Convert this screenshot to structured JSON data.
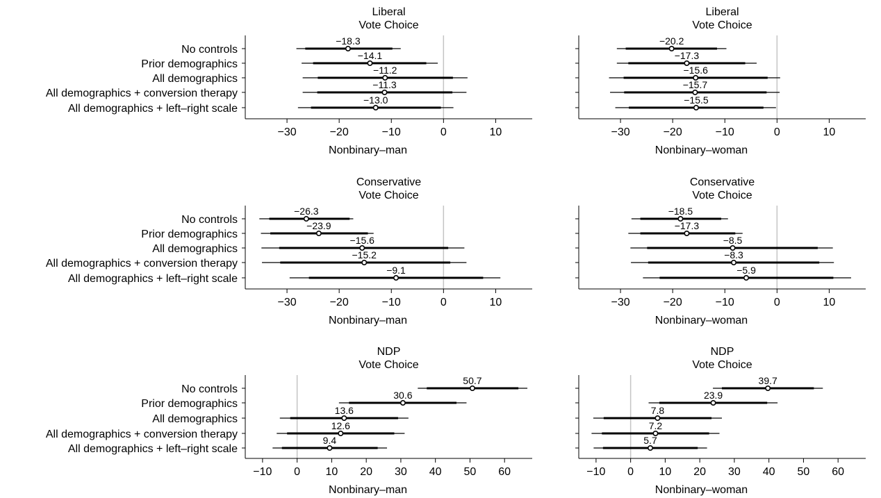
{
  "labels": {
    "rows": [
      "No controls",
      "Prior demographics",
      "All demographics",
      "All demographics + conversion therapy",
      "All demographics + left–right scale"
    ]
  },
  "chart_data": [
    {
      "type": "forest",
      "title": [
        "Liberal",
        "Vote Choice"
      ],
      "xlabel": "Nonbinary–man",
      "xlim": [
        -38,
        17
      ],
      "xticks": [
        -30,
        -20,
        -10,
        0,
        10
      ],
      "xtick_labels": [
        "−30",
        "−20",
        "−10",
        "0",
        "10"
      ],
      "categories": [
        "No controls",
        "Prior demographics",
        "All demographics",
        "All demographics + conversion therapy",
        "All demographics + left–right scale"
      ],
      "estimates": [
        -18.3,
        -14.1,
        -11.2,
        -11.3,
        -13.0
      ],
      "value_labels": [
        "−18.3",
        "−14.1",
        "−11.2",
        "−11.3",
        "−13.0"
      ],
      "ci90": [
        [
          -26.5,
          -9.8
        ],
        [
          -25.0,
          -3.3
        ],
        [
          -24.1,
          1.8
        ],
        [
          -24.2,
          1.7
        ],
        [
          -25.4,
          -0.5
        ]
      ],
      "ci95": [
        [
          -28.2,
          -8.2
        ],
        [
          -27.2,
          -1.1
        ],
        [
          -27.0,
          4.6
        ],
        [
          -27.0,
          4.4
        ],
        [
          -27.9,
          1.9
        ]
      ]
    },
    {
      "type": "forest",
      "title": [
        "Liberal",
        "Vote Choice"
      ],
      "xlabel": "Nonbinary–woman",
      "xlim": [
        -38,
        17
      ],
      "xticks": [
        -30,
        -20,
        -10,
        0,
        10
      ],
      "xtick_labels": [
        "−30",
        "−20",
        "−10",
        "0",
        "10"
      ],
      "categories": [
        "No controls",
        "Prior demographics",
        "All demographics",
        "All demographics + conversion therapy",
        "All demographics + left–right scale"
      ],
      "estimates": [
        -20.2,
        -17.3,
        -15.6,
        -15.7,
        -15.5
      ],
      "value_labels": [
        "−20.2",
        "−17.3",
        "−15.6",
        "−15.7",
        "−15.5"
      ],
      "ci90": [
        [
          -29.0,
          -11.5
        ],
        [
          -28.5,
          -6.1
        ],
        [
          -29.4,
          -1.8
        ],
        [
          -29.3,
          -2.0
        ],
        [
          -28.4,
          -2.6
        ]
      ],
      "ci95": [
        [
          -30.7,
          -9.7
        ],
        [
          -30.7,
          -3.9
        ],
        [
          -32.2,
          0.6
        ],
        [
          -32.0,
          0.5
        ],
        [
          -31.0,
          -0.2
        ]
      ]
    },
    {
      "type": "forest",
      "title": [
        "Conservative",
        "Vote Choice"
      ],
      "xlabel": "Nonbinary–man",
      "xlim": [
        -38,
        17
      ],
      "xticks": [
        -30,
        -20,
        -10,
        0,
        10
      ],
      "xtick_labels": [
        "−30",
        "−20",
        "−10",
        "0",
        "10"
      ],
      "categories": [
        "No controls",
        "Prior demographics",
        "All demographics",
        "All demographics + conversion therapy",
        "All demographics + left–right scale"
      ],
      "estimates": [
        -26.3,
        -23.9,
        -15.6,
        -15.2,
        -9.1
      ],
      "value_labels": [
        "−26.3",
        "−23.9",
        "−15.6",
        "−15.2",
        "−9.1"
      ],
      "ci90": [
        [
          -33.4,
          -18.0
        ],
        [
          -33.2,
          -14.5
        ],
        [
          -31.5,
          0.9
        ],
        [
          -31.3,
          1.3
        ],
        [
          -25.8,
          7.6
        ]
      ],
      "ci95": [
        [
          -35.3,
          -17.3
        ],
        [
          -35.0,
          -13.4
        ],
        [
          -34.9,
          4.0
        ],
        [
          -34.8,
          4.4
        ],
        [
          -29.5,
          10.9
        ]
      ]
    },
    {
      "type": "forest",
      "title": [
        "Conservative",
        "Vote Choice"
      ],
      "xlabel": "Nonbinary–woman",
      "xlim": [
        -38,
        17
      ],
      "xticks": [
        -30,
        -20,
        -10,
        0,
        10
      ],
      "xtick_labels": [
        "−30",
        "−20",
        "−10",
        "0",
        "10"
      ],
      "categories": [
        "No controls",
        "Prior demographics",
        "All demographics",
        "All demographics + conversion therapy",
        "All demographics + left–right scale"
      ],
      "estimates": [
        -18.5,
        -17.3,
        -8.5,
        -8.3,
        -5.9
      ],
      "value_labels": [
        "−18.5",
        "−17.3",
        "−8.5",
        "−8.3",
        "−5.9"
      ],
      "ci90": [
        [
          -26.2,
          -10.7
        ],
        [
          -26.2,
          -8.0
        ],
        [
          -24.9,
          7.8
        ],
        [
          -24.7,
          8.1
        ],
        [
          -22.5,
          10.8
        ]
      ],
      "ci95": [
        [
          -27.9,
          -9.4
        ],
        [
          -28.5,
          -6.6
        ],
        [
          -28.1,
          10.7
        ],
        [
          -28.0,
          10.9
        ],
        [
          -25.7,
          14.2
        ]
      ]
    },
    {
      "type": "forest",
      "title": [
        "NDP",
        "Vote Choice"
      ],
      "xlabel": "Nonbinary–man",
      "xlim": [
        -15,
        68
      ],
      "xticks": [
        -10,
        0,
        10,
        20,
        30,
        40,
        50,
        60
      ],
      "xtick_labels": [
        "−10",
        "0",
        "10",
        "20",
        "30",
        "40",
        "50",
        "60"
      ],
      "categories": [
        "No controls",
        "Prior demographics",
        "All demographics",
        "All demographics + conversion therapy",
        "All demographics + left–right scale"
      ],
      "estimates": [
        50.7,
        30.6,
        13.6,
        12.6,
        9.4
      ],
      "value_labels": [
        "50.7",
        "30.6",
        "13.6",
        "12.6",
        "9.4"
      ],
      "ci90": [
        [
          37.5,
          64.0
        ],
        [
          15.0,
          46.1
        ],
        [
          -2.0,
          29.2
        ],
        [
          -2.9,
          28.1
        ],
        [
          -4.4,
          23.3
        ]
      ],
      "ci95": [
        [
          34.9,
          66.6
        ],
        [
          12.1,
          49.0
        ],
        [
          -5.0,
          32.2
        ],
        [
          -5.9,
          31.1
        ],
        [
          -7.1,
          26.0
        ]
      ]
    },
    {
      "type": "forest",
      "title": [
        "NDP",
        "Vote Choice"
      ],
      "xlabel": "Nonbinary–woman",
      "xlim": [
        -15,
        68
      ],
      "xticks": [
        -10,
        0,
        10,
        20,
        30,
        40,
        50,
        60
      ],
      "xtick_labels": [
        "−10",
        "0",
        "10",
        "20",
        "30",
        "40",
        "50",
        "60"
      ],
      "categories": [
        "No controls",
        "Prior demographics",
        "All demographics",
        "All demographics + conversion therapy",
        "All demographics + left–right scale"
      ],
      "estimates": [
        39.7,
        23.9,
        7.8,
        7.2,
        5.7
      ],
      "value_labels": [
        "39.7",
        "23.9",
        "7.8",
        "7.2",
        "5.7"
      ],
      "ci90": [
        [
          26.4,
          53.0
        ],
        [
          8.3,
          39.5
        ],
        [
          -7.8,
          23.4
        ],
        [
          -8.3,
          22.7
        ],
        [
          -8.0,
          19.4
        ]
      ],
      "ci95": [
        [
          23.8,
          55.6
        ],
        [
          5.2,
          42.5
        ],
        [
          -10.8,
          26.4
        ],
        [
          -11.3,
          25.7
        ],
        [
          -10.7,
          22.1
        ]
      ]
    }
  ]
}
